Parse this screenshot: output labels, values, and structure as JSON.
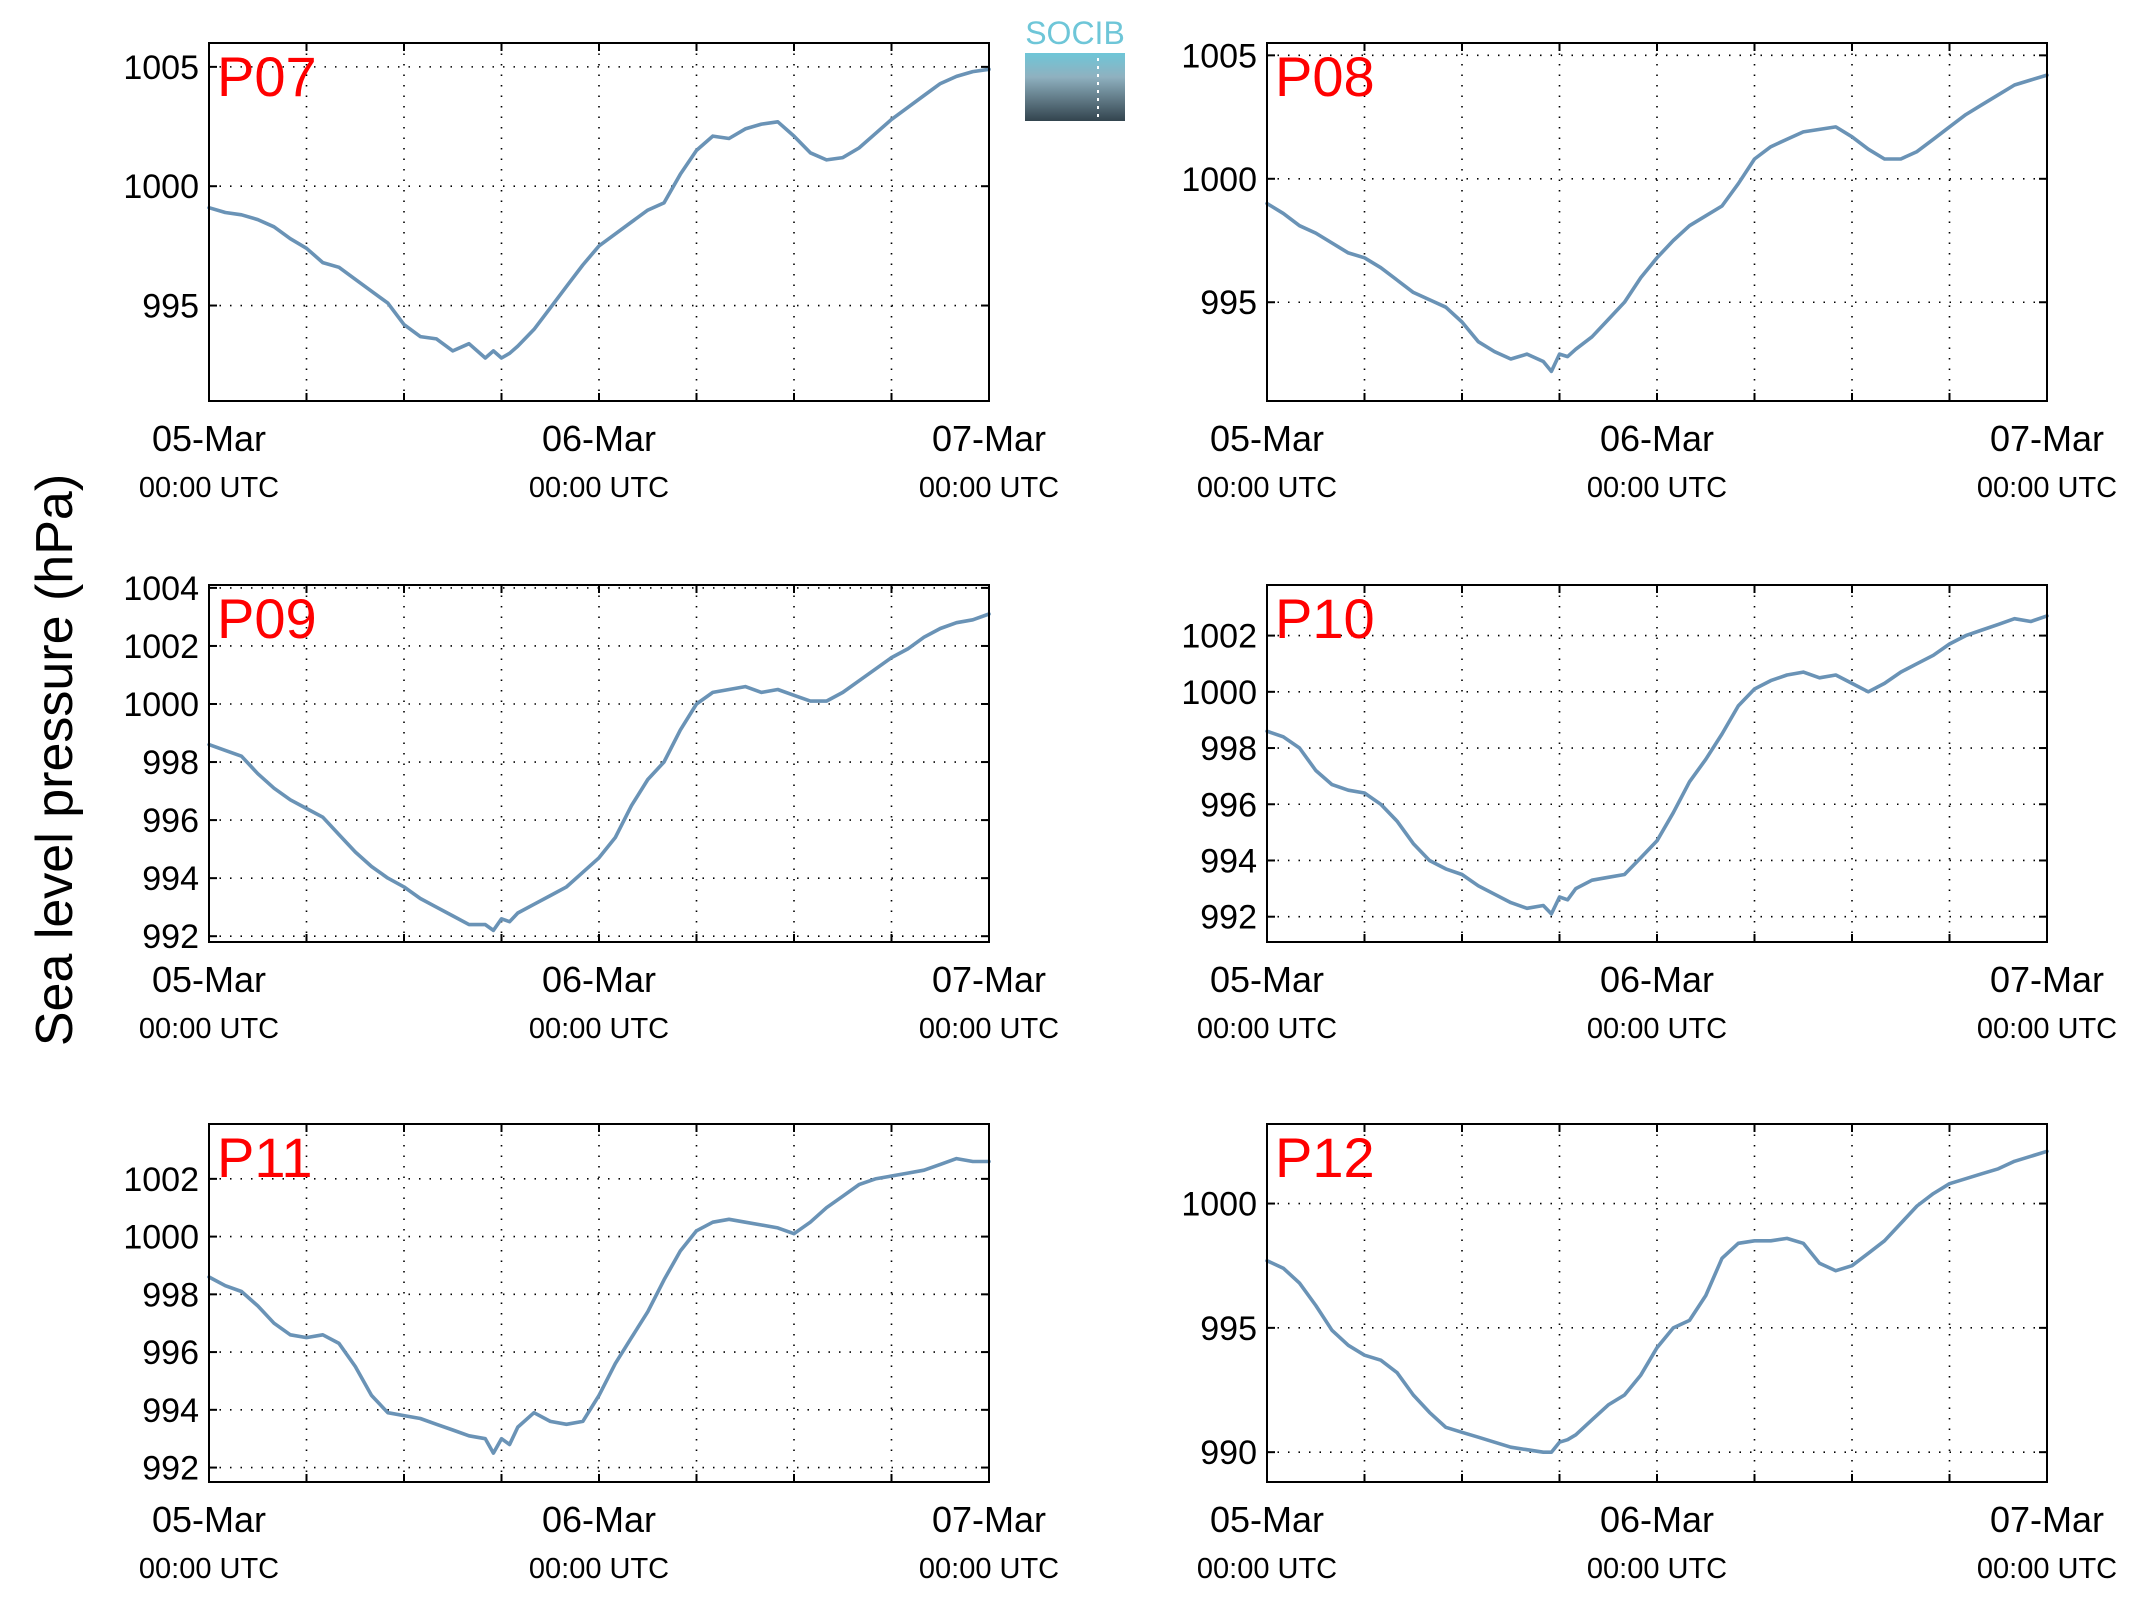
{
  "figure": {
    "ylabel": "Sea level pressure (hPa)",
    "logo_text": "SOCIB"
  },
  "colors": {
    "line": "#6a93b6",
    "station_label": "#ff0000",
    "logo_top": "#6ec6d8",
    "logo_bottom": "#33444e"
  },
  "chart_data": [
    {
      "type": "line",
      "title": "P07",
      "x_ticks": [
        {
          "main": "05-Mar",
          "sub": "00:00 UTC"
        },
        {
          "main": "06-Mar",
          "sub": "00:00 UTC"
        },
        {
          "main": "07-Mar",
          "sub": "00:00 UTC"
        }
      ],
      "xlim": [
        0,
        48
      ],
      "ylim": [
        991,
        1006
      ],
      "y_ticks": [
        995,
        1000,
        1005
      ],
      "grid": true,
      "series": [
        {
          "x": [
            0,
            1,
            2,
            3,
            4,
            5,
            6,
            7,
            8,
            9,
            10,
            11,
            12,
            13,
            14,
            15,
            16,
            17,
            17.5,
            18,
            18.5,
            19,
            20,
            21,
            22,
            23,
            24,
            25,
            26,
            27,
            28,
            29,
            30,
            31,
            32,
            33,
            34,
            35,
            36,
            37,
            38,
            39,
            40,
            41,
            42,
            43,
            44,
            45,
            46,
            47,
            48
          ],
          "values": [
            999.1,
            998.9,
            998.8,
            998.6,
            998.3,
            997.8,
            997.4,
            996.8,
            996.6,
            996.1,
            995.6,
            995.1,
            994.2,
            993.7,
            993.6,
            993.1,
            993.4,
            992.8,
            993.1,
            992.8,
            993.0,
            993.3,
            994.0,
            994.9,
            995.8,
            996.7,
            997.5,
            998.0,
            998.5,
            999.0,
            999.3,
            1000.5,
            1001.5,
            1002.1,
            1002.0,
            1002.4,
            1002.6,
            1002.7,
            1002.1,
            1001.4,
            1001.1,
            1001.2,
            1001.6,
            1002.2,
            1002.8,
            1003.3,
            1003.8,
            1004.3,
            1004.6,
            1004.8,
            1004.9
          ]
        }
      ]
    },
    {
      "type": "line",
      "title": "P08",
      "x_ticks": [
        {
          "main": "05-Mar",
          "sub": "00:00 UTC"
        },
        {
          "main": "06-Mar",
          "sub": "00:00 UTC"
        },
        {
          "main": "07-Mar",
          "sub": "00:00 UTC"
        }
      ],
      "xlim": [
        0,
        48
      ],
      "ylim": [
        991,
        1005.5
      ],
      "y_ticks": [
        995,
        1000,
        1005
      ],
      "grid": true,
      "series": [
        {
          "x": [
            0,
            1,
            2,
            3,
            4,
            5,
            6,
            7,
            8,
            9,
            10,
            11,
            12,
            13,
            14,
            15,
            16,
            17,
            17.5,
            18,
            18.5,
            19,
            20,
            21,
            22,
            23,
            24,
            25,
            26,
            27,
            28,
            29,
            30,
            31,
            32,
            33,
            34,
            35,
            36,
            37,
            38,
            39,
            40,
            41,
            42,
            43,
            44,
            45,
            46,
            47,
            48
          ],
          "values": [
            999.0,
            998.6,
            998.1,
            997.8,
            997.4,
            997.0,
            996.8,
            996.4,
            995.9,
            995.4,
            995.1,
            994.8,
            994.2,
            993.4,
            993.0,
            992.7,
            992.9,
            992.6,
            992.2,
            992.9,
            992.8,
            993.1,
            993.6,
            994.3,
            995.0,
            996.0,
            996.8,
            997.5,
            998.1,
            998.5,
            998.9,
            999.8,
            1000.8,
            1001.3,
            1001.6,
            1001.9,
            1002.0,
            1002.1,
            1001.7,
            1001.2,
            1000.8,
            1000.8,
            1001.1,
            1001.6,
            1002.1,
            1002.6,
            1003.0,
            1003.4,
            1003.8,
            1004.0,
            1004.2
          ]
        }
      ]
    },
    {
      "type": "line",
      "title": "P09",
      "x_ticks": [
        {
          "main": "05-Mar",
          "sub": "00:00 UTC"
        },
        {
          "main": "06-Mar",
          "sub": "00:00 UTC"
        },
        {
          "main": "07-Mar",
          "sub": "00:00 UTC"
        }
      ],
      "xlim": [
        0,
        48
      ],
      "ylim": [
        991.8,
        1004.1
      ],
      "y_ticks": [
        992,
        994,
        996,
        998,
        1000,
        1002,
        1004
      ],
      "grid": true,
      "series": [
        {
          "x": [
            0,
            1,
            2,
            3,
            4,
            5,
            6,
            7,
            8,
            9,
            10,
            11,
            12,
            13,
            14,
            15,
            16,
            17,
            17.5,
            18,
            18.5,
            19,
            20,
            21,
            22,
            23,
            24,
            25,
            26,
            27,
            28,
            29,
            30,
            31,
            32,
            33,
            34,
            35,
            36,
            37,
            38,
            39,
            40,
            41,
            42,
            43,
            44,
            45,
            46,
            47,
            48
          ],
          "values": [
            998.6,
            998.4,
            998.2,
            997.6,
            997.1,
            996.7,
            996.4,
            996.1,
            995.5,
            994.9,
            994.4,
            994.0,
            993.7,
            993.3,
            993.0,
            992.7,
            992.4,
            992.4,
            992.2,
            992.6,
            992.5,
            992.8,
            993.1,
            993.4,
            993.7,
            994.2,
            994.7,
            995.4,
            996.5,
            997.4,
            998.0,
            999.1,
            1000.0,
            1000.4,
            1000.5,
            1000.6,
            1000.4,
            1000.5,
            1000.3,
            1000.1,
            1000.1,
            1000.4,
            1000.8,
            1001.2,
            1001.6,
            1001.9,
            1002.3,
            1002.6,
            1002.8,
            1002.9,
            1003.1
          ]
        }
      ]
    },
    {
      "type": "line",
      "title": "P10",
      "x_ticks": [
        {
          "main": "05-Mar",
          "sub": "00:00 UTC"
        },
        {
          "main": "06-Mar",
          "sub": "00:00 UTC"
        },
        {
          "main": "07-Mar",
          "sub": "00:00 UTC"
        }
      ],
      "xlim": [
        0,
        48
      ],
      "ylim": [
        991.1,
        1003.8
      ],
      "y_ticks": [
        992,
        994,
        996,
        998,
        1000,
        1002
      ],
      "grid": true,
      "series": [
        {
          "x": [
            0,
            1,
            2,
            3,
            4,
            5,
            6,
            7,
            8,
            9,
            10,
            11,
            12,
            13,
            14,
            15,
            16,
            17,
            17.5,
            18,
            18.5,
            19,
            20,
            21,
            22,
            23,
            24,
            25,
            26,
            27,
            28,
            29,
            30,
            31,
            32,
            33,
            34,
            35,
            36,
            37,
            38,
            39,
            40,
            41,
            42,
            43,
            44,
            45,
            46,
            47,
            48
          ],
          "values": [
            998.6,
            998.4,
            998.0,
            997.2,
            996.7,
            996.5,
            996.4,
            996.0,
            995.4,
            994.6,
            994.0,
            993.7,
            993.5,
            993.1,
            992.8,
            992.5,
            992.3,
            992.4,
            992.1,
            992.7,
            992.6,
            993.0,
            993.3,
            993.4,
            993.5,
            994.1,
            994.7,
            995.7,
            996.8,
            997.6,
            998.5,
            999.5,
            1000.1,
            1000.4,
            1000.6,
            1000.7,
            1000.5,
            1000.6,
            1000.3,
            1000.0,
            1000.3,
            1000.7,
            1001.0,
            1001.3,
            1001.7,
            1002.0,
            1002.2,
            1002.4,
            1002.6,
            1002.5,
            1002.7
          ]
        }
      ]
    },
    {
      "type": "line",
      "title": "P11",
      "x_ticks": [
        {
          "main": "05-Mar",
          "sub": "00:00 UTC"
        },
        {
          "main": "06-Mar",
          "sub": "00:00 UTC"
        },
        {
          "main": "07-Mar",
          "sub": "00:00 UTC"
        }
      ],
      "xlim": [
        0,
        48
      ],
      "ylim": [
        991.5,
        1003.9
      ],
      "y_ticks": [
        992,
        994,
        996,
        998,
        1000,
        1002
      ],
      "grid": true,
      "series": [
        {
          "x": [
            0,
            1,
            2,
            3,
            4,
            5,
            6,
            7,
            8,
            9,
            10,
            11,
            12,
            13,
            14,
            15,
            16,
            17,
            17.5,
            18,
            18.5,
            19,
            20,
            21,
            22,
            23,
            24,
            25,
            26,
            27,
            28,
            29,
            30,
            31,
            32,
            33,
            34,
            35,
            36,
            37,
            38,
            39,
            40,
            41,
            42,
            43,
            44,
            45,
            46,
            47,
            48
          ],
          "values": [
            998.6,
            998.3,
            998.1,
            997.6,
            997.0,
            996.6,
            996.5,
            996.6,
            996.3,
            995.5,
            994.5,
            993.9,
            993.8,
            993.7,
            993.5,
            993.3,
            993.1,
            993.0,
            992.5,
            993.0,
            992.8,
            993.4,
            993.9,
            993.6,
            993.5,
            993.6,
            994.5,
            995.6,
            996.5,
            997.4,
            998.5,
            999.5,
            1000.2,
            1000.5,
            1000.6,
            1000.5,
            1000.4,
            1000.3,
            1000.1,
            1000.5,
            1001.0,
            1001.4,
            1001.8,
            1002.0,
            1002.1,
            1002.2,
            1002.3,
            1002.5,
            1002.7,
            1002.6,
            1002.6
          ]
        }
      ]
    },
    {
      "type": "line",
      "title": "P12",
      "x_ticks": [
        {
          "main": "05-Mar",
          "sub": "00:00 UTC"
        },
        {
          "main": "06-Mar",
          "sub": "00:00 UTC"
        },
        {
          "main": "07-Mar",
          "sub": "00:00 UTC"
        }
      ],
      "xlim": [
        0,
        48
      ],
      "ylim": [
        988.8,
        1003.2
      ],
      "y_ticks": [
        990,
        995,
        1000
      ],
      "grid": true,
      "series": [
        {
          "x": [
            0,
            1,
            2,
            3,
            4,
            5,
            6,
            7,
            8,
            9,
            10,
            11,
            12,
            13,
            14,
            15,
            16,
            17,
            17.5,
            18,
            18.5,
            19,
            20,
            21,
            22,
            23,
            24,
            25,
            26,
            27,
            28,
            29,
            30,
            31,
            32,
            33,
            34,
            35,
            36,
            37,
            38,
            39,
            40,
            41,
            42,
            43,
            44,
            45,
            46,
            47,
            48
          ],
          "values": [
            997.7,
            997.4,
            996.8,
            995.9,
            994.9,
            994.3,
            993.9,
            993.7,
            993.2,
            992.3,
            991.6,
            991.0,
            990.8,
            990.6,
            990.4,
            990.2,
            990.1,
            990.0,
            990.0,
            990.4,
            990.5,
            990.7,
            991.3,
            991.9,
            992.3,
            993.1,
            994.2,
            995.0,
            995.3,
            996.3,
            997.8,
            998.4,
            998.5,
            998.5,
            998.6,
            998.4,
            997.6,
            997.3,
            997.5,
            998.0,
            998.5,
            999.2,
            999.9,
            1000.4,
            1000.8,
            1001.0,
            1001.2,
            1001.4,
            1001.7,
            1001.9,
            1002.1
          ]
        }
      ]
    }
  ]
}
